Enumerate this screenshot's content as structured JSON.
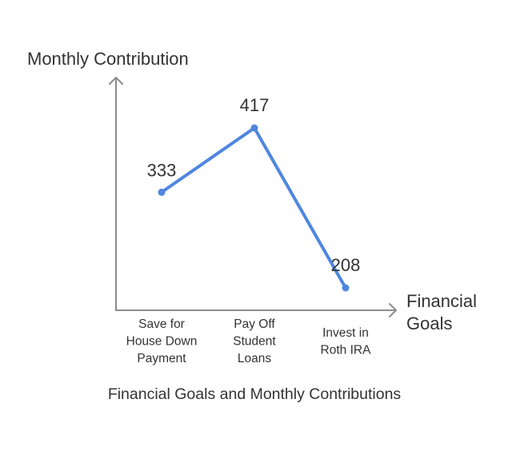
{
  "chart_data": {
    "type": "line",
    "title": "Financial Goals and Monthly Contributions",
    "ylabel": "Monthly Contribution",
    "xlabel": [
      "Financial",
      "Goals"
    ],
    "categories": [
      [
        "Save for",
        "House Down",
        "Payment"
      ],
      [
        "Pay Off",
        "Student",
        "Loans"
      ],
      [
        "Invest in",
        "Roth IRA"
      ]
    ],
    "series": [
      {
        "values": [
          333,
          417,
          208
        ]
      }
    ],
    "data_labels": [
      "333",
      "417",
      "208"
    ],
    "ylim": [
      100,
      460
    ],
    "grid": false,
    "legend": "none",
    "colors": {
      "series": "#4f86e0",
      "axis": "#8c8c8c",
      "text": "#333333"
    }
  }
}
